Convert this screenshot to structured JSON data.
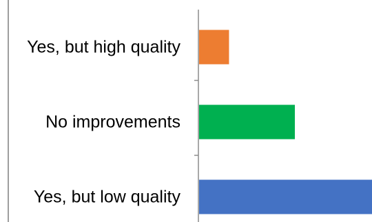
{
  "chart_data": {
    "type": "bar",
    "orientation": "horizontal",
    "title": "",
    "xlabel": "",
    "ylabel": "",
    "categories": [
      "Yes, but high quality",
      "No improvements",
      "Yes, but low quality"
    ],
    "values": [
      5,
      16,
      29
    ],
    "colors": [
      "#ED7D31",
      "#00B050",
      "#4472C4"
    ],
    "xlim": [
      0,
      29
    ],
    "grid": false,
    "legend": "none"
  }
}
